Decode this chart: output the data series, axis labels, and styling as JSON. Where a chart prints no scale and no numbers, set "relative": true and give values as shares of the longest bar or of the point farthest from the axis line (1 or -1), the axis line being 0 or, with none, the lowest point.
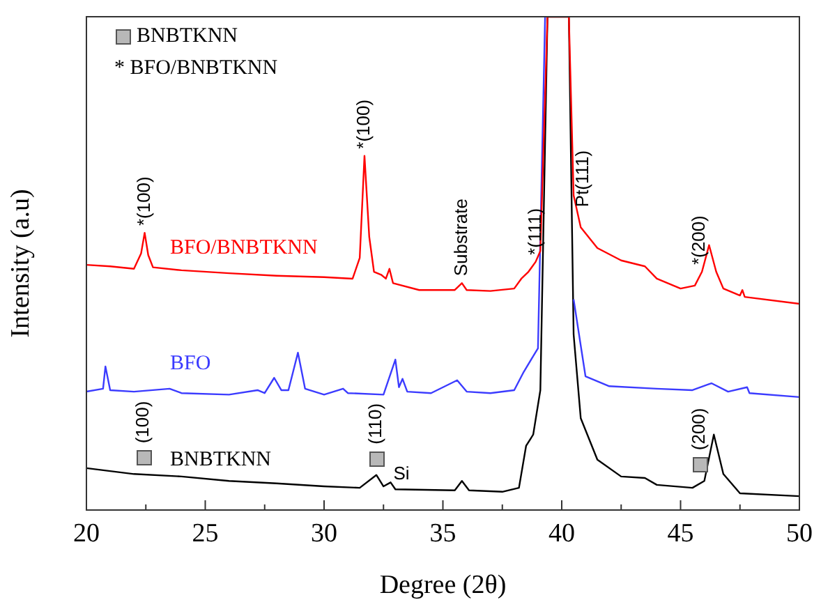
{
  "chart_data": {
    "type": "line",
    "xlabel": "Degree (2θ)",
    "ylabel": "Intensity (a.u)",
    "relative": true,
    "grid": false,
    "legend": false,
    "marker": "none",
    "line_style": "solid",
    "tick_labels": "x",
    "xlim": [
      20,
      50
    ],
    "xticks": [
      20,
      {
        "value": 22.5,
        "label": null
      },
      25,
      {
        "value": 27.5,
        "label": null
      },
      30,
      {
        "value": 32.5,
        "label": null
      },
      35,
      {
        "value": 37.5,
        "label": null
      },
      40,
      {
        "value": 42.5,
        "label": null
      },
      45,
      {
        "value": 47.5,
        "label": null
      },
      50
    ],
    "series": [
      {
        "name": "BFO/BNBTKNN",
        "color": "#ff0000",
        "x": [
          20,
          21,
          22,
          22.3,
          22.45,
          22.6,
          22.8,
          24,
          26,
          28,
          30,
          31.2,
          31.5,
          31.7,
          31.9,
          32.1,
          32.4,
          32.6,
          32.75,
          32.9,
          34,
          35.5,
          35.8,
          36,
          37,
          38,
          38.3,
          38.6,
          38.9,
          39.1,
          39.4,
          40.3,
          40.5,
          40.8,
          41.5,
          42.5,
          43.5,
          44,
          45,
          45.6,
          45.9,
          46.2,
          46.5,
          46.8,
          47.5,
          47.6,
          47.7,
          50
        ],
        "values": [
          0.497,
          0.494,
          0.489,
          0.52,
          0.562,
          0.517,
          0.492,
          0.486,
          0.48,
          0.475,
          0.472,
          0.469,
          0.511,
          0.718,
          0.554,
          0.483,
          0.477,
          0.469,
          0.489,
          0.46,
          0.446,
          0.446,
          0.46,
          0.446,
          0.444,
          0.449,
          0.469,
          0.483,
          0.503,
          0.525,
          1,
          1,
          0.638,
          0.573,
          0.531,
          0.506,
          0.494,
          0.469,
          0.449,
          0.455,
          0.483,
          0.537,
          0.483,
          0.449,
          0.435,
          0.446,
          0.432,
          0.418
        ]
      },
      {
        "name": "BFO",
        "color": "#3b3bff",
        "x": [
          20,
          20.7,
          20.8,
          21,
          22,
          23.5,
          24,
          26,
          27.2,
          27.5,
          27.9,
          28.2,
          28.5,
          28.9,
          29.2,
          30,
          30.8,
          31,
          32.5,
          33,
          33.15,
          33.3,
          33.5,
          34.5,
          35.6,
          36,
          37,
          38,
          38.4,
          39,
          39.3,
          40.3,
          40.5,
          41,
          42,
          44,
          45.5,
          46.3,
          47,
          47.8,
          47.9,
          50
        ],
        "values": [
          0.24,
          0.246,
          0.291,
          0.243,
          0.24,
          0.246,
          0.237,
          0.234,
          0.243,
          0.237,
          0.268,
          0.243,
          0.243,
          0.319,
          0.246,
          0.234,
          0.246,
          0.237,
          0.234,
          0.305,
          0.249,
          0.266,
          0.24,
          0.237,
          0.263,
          0.24,
          0.237,
          0.243,
          0.28,
          0.328,
          1,
          null,
          0.427,
          0.271,
          0.251,
          0.246,
          0.243,
          0.257,
          0.24,
          0.249,
          0.237,
          0.229
        ]
      },
      {
        "name": "BNBTKNN",
        "color": "#000000",
        "x": [
          20,
          22,
          24,
          26,
          28,
          30,
          31.5,
          32.2,
          32.5,
          32.8,
          33,
          35.5,
          35.8,
          36.1,
          37.5,
          38.2,
          38.5,
          38.8,
          39.1,
          39.4,
          40.3,
          40.5,
          40.8,
          41.5,
          42.5,
          43.5,
          44,
          45.5,
          46,
          46.4,
          46.8,
          47.5,
          50
        ],
        "values": [
          0.085,
          0.073,
          0.068,
          0.059,
          0.054,
          0.048,
          0.045,
          0.071,
          0.048,
          0.056,
          0.042,
          0.04,
          0.059,
          0.04,
          0.037,
          0.045,
          0.13,
          0.153,
          0.243,
          1,
          1,
          0.356,
          0.186,
          0.102,
          0.068,
          0.065,
          0.051,
          0.045,
          0.059,
          0.153,
          0.073,
          0.034,
          0.028
        ]
      }
    ],
    "annotations": [
      "BNBTKNN",
      "* BFO/BNBTKNN",
      {
        "text": "*(100)",
        "x": 22.45,
        "y": 0.562
      },
      {
        "text": "*(100)",
        "x": 31.7,
        "y": 0.718
      },
      {
        "text": "Substrate",
        "x": 35.8,
        "y": 0.46
      },
      {
        "text": "*(111)",
        "x": 38.9,
        "y": 0.503
      },
      {
        "text": "Pt(111)",
        "x": 40.9,
        "y": 0.6
      },
      {
        "text": "*(200)",
        "x": 45.8,
        "y": 0.483
      },
      {
        "text": "(100)",
        "x": 22.4,
        "y": 0.073
      },
      {
        "text": "(110)",
        "x": 32.2,
        "y": 0.071
      },
      {
        "text": "Si",
        "x": 32.8,
        "y": 0.056
      },
      {
        "text": "(200)",
        "x": 45.8,
        "y": 0.059
      }
    ]
  }
}
